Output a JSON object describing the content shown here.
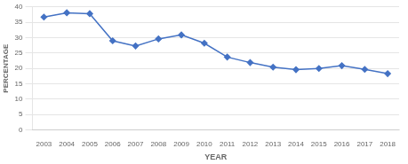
{
  "chart_data": {
    "type": "line",
    "x": [
      2003,
      2004,
      2005,
      2006,
      2007,
      2008,
      2009,
      2010,
      2011,
      2012,
      2013,
      2014,
      2015,
      2016,
      2017,
      2018
    ],
    "values": [
      36.7,
      38.1,
      37.8,
      29.0,
      27.3,
      29.6,
      30.9,
      28.2,
      23.7,
      21.9,
      20.4,
      19.6,
      20.0,
      20.9,
      19.7,
      18.3
    ],
    "color": "#4472C4",
    "marker": "diamond",
    "xlabel": "YEAR",
    "ylabel": "PERCENTAGE",
    "xlim": [
      2002.5,
      2018.5
    ],
    "xticks": [
      2003,
      2004,
      2005,
      2006,
      2007,
      2008,
      2009,
      2010,
      2011,
      2012,
      2013,
      2014,
      2015,
      2016,
      2017,
      2018
    ],
    "ylim": [
      0,
      40
    ],
    "yticks": [
      0,
      5,
      10,
      15,
      20,
      25,
      30,
      35,
      40
    ],
    "grid": "y"
  }
}
